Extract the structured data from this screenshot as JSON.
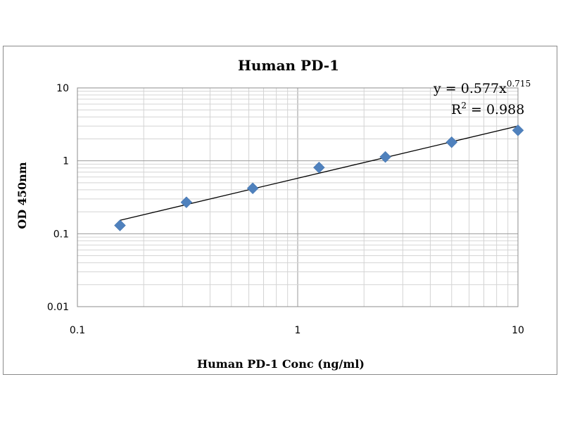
{
  "chart_data": {
    "type": "scatter",
    "title": "Human PD-1",
    "xlabel": "Human PD-1 Conc (ng/ml)",
    "ylabel": "OD 450nm",
    "x_scale": "log",
    "y_scale": "log",
    "xlim": [
      0.1,
      10
    ],
    "ylim": [
      0.01,
      10
    ],
    "x_ticks": [
      "0.1",
      "1",
      "10"
    ],
    "y_ticks": [
      "0.01",
      "0.1",
      "1",
      "10"
    ],
    "grid": true,
    "legend": "none",
    "marker": "diamond",
    "marker_color": "#4f81bd",
    "trendline_color": "#000000",
    "points": [
      {
        "x": 0.156,
        "y": 0.13
      },
      {
        "x": 0.3125,
        "y": 0.27
      },
      {
        "x": 0.625,
        "y": 0.42
      },
      {
        "x": 1.25,
        "y": 0.81
      },
      {
        "x": 2.5,
        "y": 1.13
      },
      {
        "x": 5,
        "y": 1.8
      },
      {
        "x": 10,
        "y": 2.62
      }
    ],
    "trendline": {
      "type": "power",
      "coefficient": 0.577,
      "exponent": 0.715,
      "equation_base": "y = 0.577x",
      "equation_exponent": "0.715",
      "r2_base": "R",
      "r2_exponent": "2",
      "r2_value": " = 0.988"
    }
  }
}
